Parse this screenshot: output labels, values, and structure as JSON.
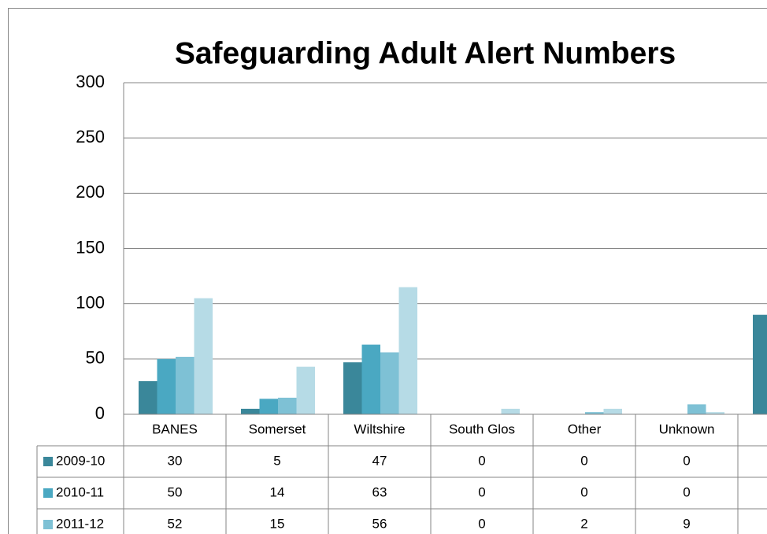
{
  "chart_data": {
    "type": "bar",
    "title": "Safeguarding Adult Alert Numbers",
    "categories": [
      "BANES",
      "Somerset",
      "Wiltshire",
      "South Glos",
      "Other",
      "Unknown",
      null
    ],
    "series": [
      {
        "name": "2009-10",
        "color": "#3a879a",
        "values": [
          30,
          5,
          47,
          0,
          0,
          0,
          90
        ]
      },
      {
        "name": "2010-11",
        "color": "#4aa8c2",
        "values": [
          50,
          14,
          63,
          0,
          0,
          0,
          null
        ]
      },
      {
        "name": "2011-12",
        "color": "#7ec1d5",
        "values": [
          52,
          15,
          56,
          0,
          2,
          9,
          null
        ]
      },
      {
        "color": "#b6dbe6",
        "values": [
          105,
          43,
          115,
          5,
          5,
          2,
          null
        ]
      }
    ],
    "ylim": [
      0,
      300
    ],
    "yticks": [
      0,
      50,
      100,
      150,
      200,
      250,
      300
    ],
    "grid": true
  }
}
